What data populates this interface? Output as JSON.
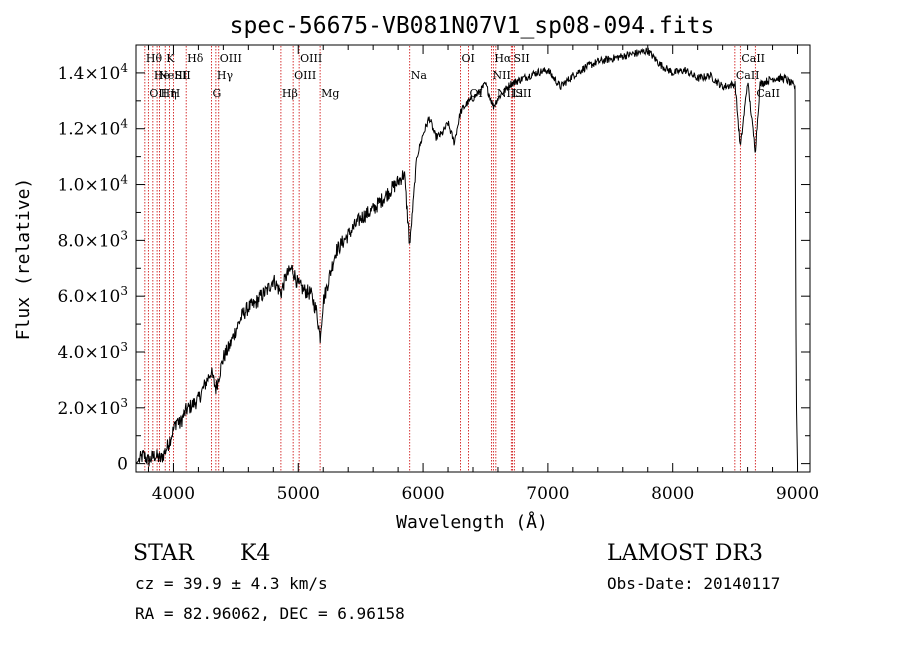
{
  "chart_data": {
    "type": "line",
    "title": "spec-56675-VB081N07V1_sp08-094.fits",
    "xlabel": "Wavelength (Å)",
    "ylabel": "Flux (relative)",
    "xlim": [
      3700,
      9100
    ],
    "ylim": [
      -300,
      15000
    ],
    "x_ticks": [
      {
        "value": 4000,
        "label": "4000"
      },
      {
        "value": 5000,
        "label": "5000"
      },
      {
        "value": 6000,
        "label": "6000"
      },
      {
        "value": 7000,
        "label": "7000"
      },
      {
        "value": 8000,
        "label": "8000"
      },
      {
        "value": 9000,
        "label": "9000"
      }
    ],
    "y_ticks": [
      {
        "value": 0,
        "mantissa": "0",
        "exp": ""
      },
      {
        "value": 2000,
        "mantissa": "2.0×10",
        "exp": "3"
      },
      {
        "value": 4000,
        "mantissa": "4.0×10",
        "exp": "3"
      },
      {
        "value": 6000,
        "mantissa": "6.0×10",
        "exp": "3"
      },
      {
        "value": 8000,
        "mantissa": "8.0×10",
        "exp": "3"
      },
      {
        "value": 10000,
        "mantissa": "1.0×10",
        "exp": "4"
      },
      {
        "value": 12000,
        "mantissa": "1.2×10",
        "exp": "4"
      },
      {
        "value": 14000,
        "mantissa": "1.4×10",
        "exp": "4"
      }
    ],
    "spectrum": {
      "x": [
        3700,
        3760,
        3800,
        3850,
        3900,
        3950,
        4000,
        4030,
        4050,
        4100,
        4150,
        4200,
        4250,
        4300,
        4340,
        4400,
        4450,
        4500,
        4550,
        4600,
        4650,
        4700,
        4750,
        4800,
        4861,
        4900,
        4950,
        5000,
        5050,
        5100,
        5150,
        5175,
        5200,
        5300,
        5400,
        5500,
        5600,
        5700,
        5800,
        5850,
        5893,
        5950,
        6000,
        6050,
        6100,
        6150,
        6200,
        6250,
        6300,
        6350,
        6400,
        6450,
        6500,
        6563,
        6600,
        6700,
        6800,
        6900,
        7000,
        7100,
        7200,
        7300,
        7400,
        7500,
        7600,
        7700,
        7800,
        7900,
        8000,
        8100,
        8200,
        8300,
        8400,
        8500,
        8542,
        8600,
        8662,
        8700,
        8800,
        8900,
        8980,
        8990,
        9000
      ],
      "y": [
        0,
        300,
        100,
        300,
        150,
        600,
        1200,
        1600,
        1400,
        1900,
        2100,
        2300,
        2800,
        3300,
        2700,
        3800,
        4200,
        4800,
        5300,
        5600,
        5700,
        6000,
        6200,
        6600,
        6100,
        6700,
        7000,
        6400,
        6200,
        6100,
        5400,
        4500,
        5800,
        7600,
        8200,
        8800,
        9100,
        9600,
        10100,
        10400,
        7800,
        11000,
        11800,
        12400,
        11700,
        11800,
        12200,
        11500,
        12600,
        12900,
        13100,
        13300,
        13600,
        12800,
        13100,
        13600,
        13800,
        14000,
        14100,
        13500,
        13900,
        14200,
        14400,
        14500,
        14600,
        14700,
        14800,
        14300,
        14000,
        14100,
        13800,
        13900,
        13500,
        13600,
        11300,
        13700,
        11200,
        13600,
        13800,
        13800,
        13500,
        2500,
        0
      ]
    },
    "lines": [
      {
        "x": 3771,
        "label": "Hθ",
        "row": 1
      },
      {
        "x": 3799,
        "label": "OII",
        "row": 3
      },
      {
        "x": 3835,
        "label": "He",
        "row": 2
      },
      {
        "x": 3869,
        "label": "NeIII",
        "row": 2
      },
      {
        "x": 3889,
        "label": "Hη",
        "row": 3
      },
      {
        "x": 3934,
        "label": "K",
        "row": 1
      },
      {
        "x": 3969,
        "label": "H",
        "row": 3
      },
      {
        "x": 4000,
        "label": "SII",
        "row": 2
      },
      {
        "x": 4102,
        "label": "Hδ",
        "row": 1
      },
      {
        "x": 4305,
        "label": "G",
        "row": 3
      },
      {
        "x": 4340,
        "label": "Hγ",
        "row": 2
      },
      {
        "x": 4363,
        "label": "OIII",
        "row": 1
      },
      {
        "x": 4861,
        "label": "Hβ",
        "row": 3
      },
      {
        "x": 4959,
        "label": "OIII",
        "row": 2
      },
      {
        "x": 5007,
        "label": "OIII",
        "row": 1
      },
      {
        "x": 5175,
        "label": "Mg",
        "row": 3
      },
      {
        "x": 5893,
        "label": "Na",
        "row": 2
      },
      {
        "x": 6300,
        "label": "OI",
        "row": 1
      },
      {
        "x": 6364,
        "label": "OI",
        "row": 3
      },
      {
        "x": 6548,
        "label": "NII",
        "row": 2
      },
      {
        "x": 6563,
        "label": "Hα",
        "row": 1
      },
      {
        "x": 6583,
        "label": "NII",
        "row": 3
      },
      {
        "x": 6707,
        "label": "Li",
        "row": 3
      },
      {
        "x": 6716,
        "label": "SII",
        "row": 1
      },
      {
        "x": 6731,
        "label": "SII",
        "row": 3
      },
      {
        "x": 8498,
        "label": "CaII",
        "row": 2
      },
      {
        "x": 8542,
        "label": "CaII",
        "row": 1
      },
      {
        "x": 8662,
        "label": "CaII",
        "row": 3
      }
    ]
  },
  "info": {
    "class_label": "STAR",
    "subclass": "K4",
    "redshift": "cz = 39.9 ± 4.3 km/s",
    "coords": "RA =  82.96062, DEC =   6.96158",
    "survey": "LAMOST DR3",
    "obs_date": "Obs-Date: 20140117"
  }
}
